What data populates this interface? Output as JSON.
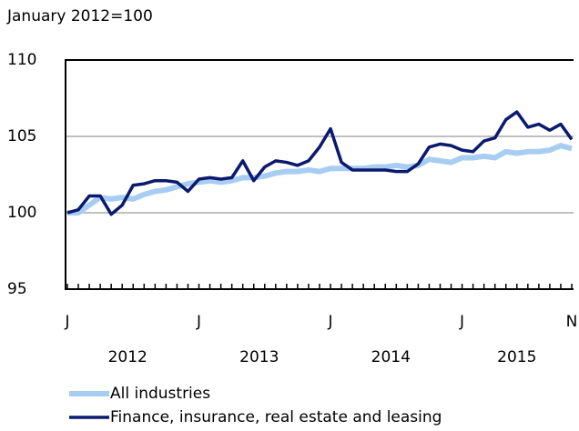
{
  "chart_data": {
    "type": "line",
    "subtitle": "January 2012=100",
    "categories": [
      "J",
      null,
      null,
      null,
      null,
      null,
      null,
      null,
      null,
      null,
      null,
      null,
      "J",
      null,
      null,
      null,
      null,
      null,
      null,
      null,
      null,
      null,
      null,
      null,
      "J",
      null,
      null,
      null,
      null,
      null,
      null,
      null,
      null,
      null,
      null,
      null,
      "J",
      null,
      null,
      null,
      null,
      null,
      null,
      null,
      null,
      null,
      "N"
    ],
    "groups": [
      "2012",
      "2013",
      "2014",
      "2015"
    ],
    "series": [
      {
        "name": "All industries",
        "color": "#a7cdf3",
        "values": [
          100.0,
          100.0,
          100.5,
          101.0,
          100.9,
          101.0,
          100.9,
          101.2,
          101.4,
          101.5,
          101.7,
          101.9,
          102.0,
          102.1,
          102.0,
          102.1,
          102.3,
          102.3,
          102.4,
          102.6,
          102.7,
          102.7,
          102.8,
          102.7,
          102.9,
          102.9,
          102.9,
          102.9,
          103.0,
          103.0,
          103.1,
          103.0,
          103.1,
          103.5,
          103.4,
          103.3,
          103.6,
          103.6,
          103.7,
          103.6,
          104.0,
          103.9,
          104.0,
          104.0,
          104.1,
          104.4,
          104.2
        ]
      },
      {
        "name": "Finance, insurance, real estate and leasing",
        "color": "#0b1a6e",
        "values": [
          100.0,
          100.2,
          101.1,
          101.1,
          99.9,
          100.5,
          101.8,
          101.9,
          102.1,
          102.1,
          102.0,
          101.4,
          102.2,
          102.3,
          102.2,
          102.3,
          103.4,
          102.1,
          103.0,
          103.4,
          103.3,
          103.1,
          103.4,
          104.3,
          105.5,
          103.3,
          102.8,
          102.8,
          102.8,
          102.8,
          102.7,
          102.7,
          103.2,
          104.3,
          104.5,
          104.4,
          104.1,
          104.0,
          104.7,
          104.9,
          106.1,
          106.6,
          105.6,
          105.8,
          105.4,
          105.8,
          104.8
        ]
      }
    ],
    "ylim": [
      95,
      110
    ],
    "yticks": [
      95,
      100,
      105,
      110
    ],
    "grid": true
  }
}
